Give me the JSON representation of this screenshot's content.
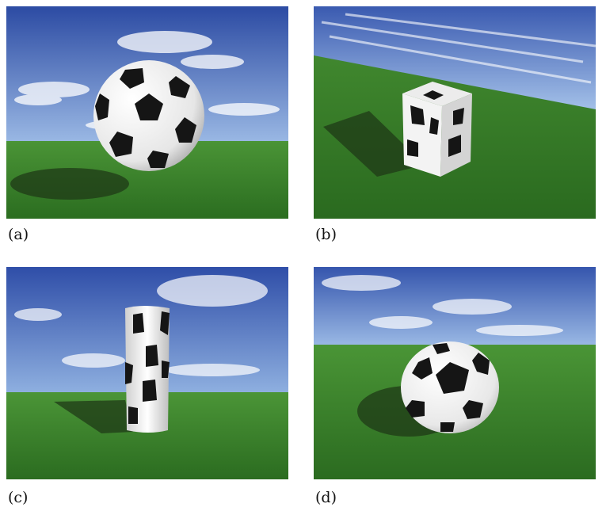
{
  "figure": {
    "panels": [
      {
        "id": "a",
        "caption": "(a)",
        "subject": "soccer-ball-sphere-floating"
      },
      {
        "id": "b",
        "caption": "(b)",
        "subject": "soccer-ball-cube"
      },
      {
        "id": "c",
        "caption": "(c)",
        "subject": "soccer-ball-tall-column"
      },
      {
        "id": "d",
        "caption": "(d)",
        "subject": "soccer-ball-squashed-on-grass"
      }
    ],
    "colors": {
      "sky_top": "#2f4fa8",
      "sky_bottom": "#8fb0e0",
      "cloud": "#ffffff",
      "grass_top": "#3e8a2c",
      "grass_bottom": "#2a6b1e",
      "shadow": "#1f3a17",
      "ball_white": "#f2f2f2",
      "ball_black": "#151515"
    }
  }
}
